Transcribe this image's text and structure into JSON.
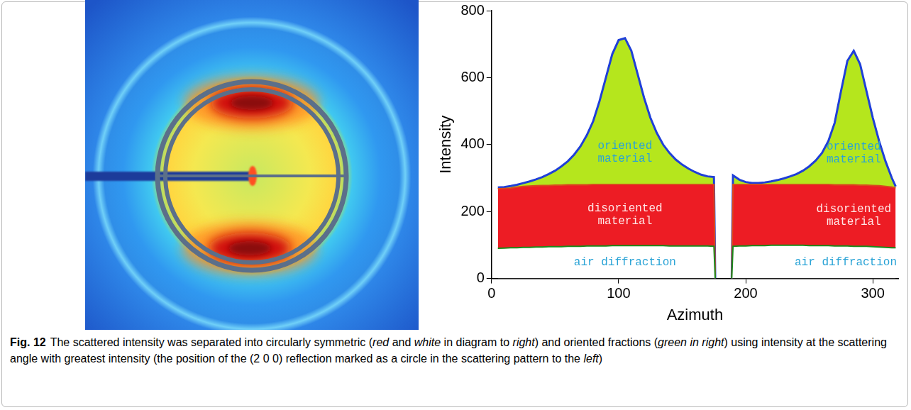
{
  "chart_data": {
    "type": "area",
    "x_label": "Azimuth",
    "y_label": "Intensity",
    "x": [
      5,
      10,
      15,
      20,
      25,
      30,
      35,
      40,
      45,
      50,
      55,
      60,
      65,
      70,
      75,
      80,
      85,
      90,
      95,
      100,
      105,
      110,
      115,
      120,
      125,
      130,
      135,
      140,
      145,
      150,
      155,
      160,
      165,
      170,
      175,
      176,
      182,
      189,
      190,
      195,
      200,
      205,
      210,
      215,
      220,
      225,
      230,
      235,
      240,
      245,
      250,
      255,
      260,
      265,
      270,
      275,
      280,
      285,
      290,
      295,
      300,
      305,
      310,
      315,
      318
    ],
    "series": [
      {
        "name": "air diffraction",
        "color": "#ffffff",
        "values": [
          90,
          91,
          92,
          92,
          93,
          93,
          94,
          94,
          95,
          95,
          95,
          96,
          96,
          96,
          97,
          97,
          97,
          97,
          98,
          98,
          98,
          98,
          98,
          98,
          98,
          98,
          98,
          97,
          97,
          97,
          97,
          97,
          97,
          97,
          96,
          0,
          null,
          0,
          96,
          97,
          97,
          98,
          98,
          98,
          99,
          99,
          99,
          99,
          99,
          99,
          98,
          98,
          98,
          98,
          97,
          97,
          97,
          96,
          96,
          96,
          95,
          94,
          93,
          92,
          92
        ]
      },
      {
        "name": "disoriented material",
        "color": "#ed1c24",
        "values": [
          178,
          178,
          178,
          181,
          182,
          183,
          183,
          184,
          183,
          184,
          184,
          184,
          184,
          184,
          183,
          184,
          184,
          184,
          183,
          183,
          183,
          183,
          183,
          183,
          183,
          183,
          183,
          184,
          184,
          184,
          184,
          184,
          184,
          184,
          185,
          0,
          null,
          0,
          185,
          184,
          184,
          183,
          183,
          183,
          182,
          182,
          182,
          182,
          182,
          182,
          183,
          183,
          183,
          183,
          183,
          183,
          183,
          184,
          183,
          183,
          183,
          183,
          182,
          181,
          179
        ]
      },
      {
        "name": "oriented material",
        "color": "#b5e61d",
        "values": [
          4,
          4,
          6,
          7,
          10,
          14,
          19,
          25,
          34,
          43,
          56,
          70,
          90,
          115,
          148,
          189,
          249,
          319,
          389,
          431,
          437,
          399,
          329,
          259,
          199,
          154,
          119,
          94,
          74,
          59,
          47,
          37,
          29,
          24,
          22,
          0,
          null,
          0,
          27,
          14,
          7,
          4,
          4,
          6,
          9,
          13,
          18,
          24,
          31,
          41,
          54,
          71,
          94,
          129,
          185,
          280,
          370,
          400,
          361,
          281,
          202,
          133,
          75,
          27,
          4
        ]
      }
    ],
    "stacked": true,
    "xlim": [
      0,
      320
    ],
    "xticks": [
      0,
      100,
      200,
      300
    ],
    "ylim": [
      0,
      800
    ],
    "yticks": [
      0,
      200,
      400,
      600,
      800
    ],
    "grid": false
  },
  "caption": {
    "label": "Fig. 12",
    "segments": [
      {
        "text": "The scattered intensity was separated into circularly symmetric ("
      },
      {
        "text": "red",
        "style": "italic"
      },
      {
        "text": " and "
      },
      {
        "text": "white",
        "style": "italic"
      },
      {
        "text": " in diagram to "
      },
      {
        "text": "right",
        "style": "italic"
      },
      {
        "text": ") and oriented fractions ("
      },
      {
        "text": "green in right",
        "style": "italic"
      },
      {
        "text": ") using intensity at the scattering angle with greatest intensity (the position of the (2 0 0) reflection marked as a circle in the scattering pattern to the "
      },
      {
        "text": "left",
        "style": "italic"
      },
      {
        "text": ")"
      }
    ]
  }
}
